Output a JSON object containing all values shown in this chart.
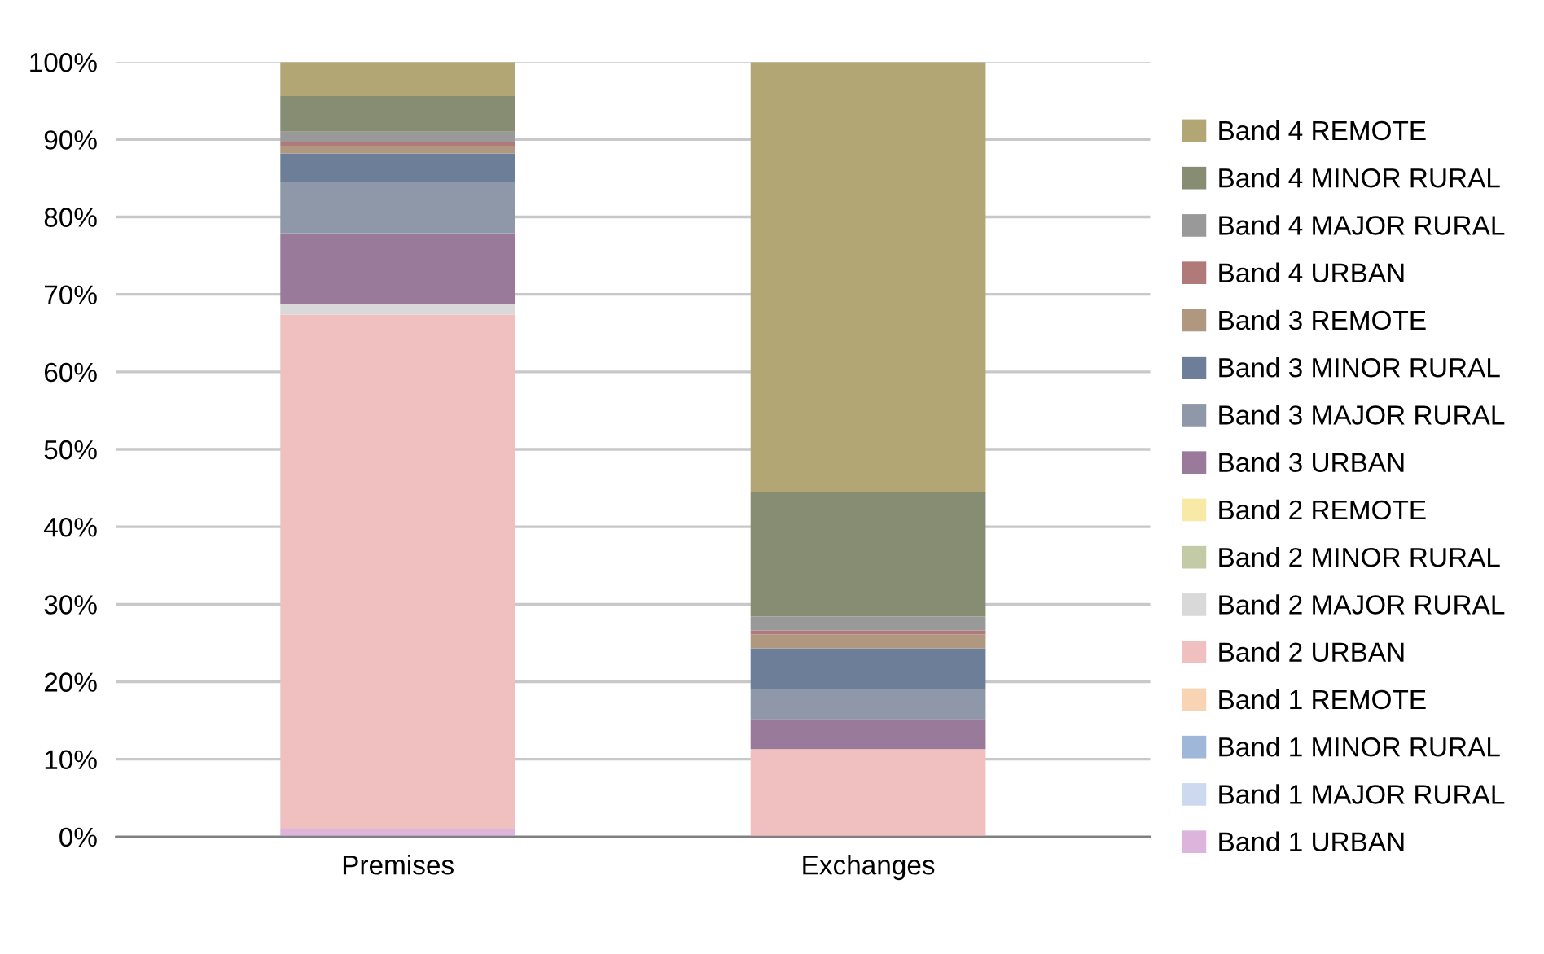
{
  "chart_data": {
    "type": "bar",
    "stacked": true,
    "categories": [
      "Premises",
      "Exchanges"
    ],
    "ylim": [
      0,
      100
    ],
    "yticks": [
      {
        "value": 0,
        "label": "0%"
      },
      {
        "value": 10,
        "label": "10%"
      },
      {
        "value": 20,
        "label": "20%"
      },
      {
        "value": 30,
        "label": "30%"
      },
      {
        "value": 40,
        "label": "40%"
      },
      {
        "value": 50,
        "label": "50%"
      },
      {
        "value": 60,
        "label": "60%"
      },
      {
        "value": 70,
        "label": "70%"
      },
      {
        "value": 80,
        "label": "80%"
      },
      {
        "value": 90,
        "label": "90%"
      },
      {
        "value": 100,
        "label": "100%"
      }
    ],
    "grid": "y",
    "legend": "right",
    "series": [
      {
        "name": "Band 1 URBAN",
        "color": "#dcb4dc",
        "values": [
          1.0,
          0
        ]
      },
      {
        "name": "Band 1 MAJOR RURAL",
        "color": "#ccd9ee",
        "values": [
          0,
          0
        ]
      },
      {
        "name": "Band 1 MINOR RURAL",
        "color": "#9fb7d9",
        "values": [
          0,
          0
        ]
      },
      {
        "name": "Band 1 REMOTE",
        "color": "#f8d4b4",
        "values": [
          0,
          0
        ]
      },
      {
        "name": "Band 2 URBAN",
        "color": "#f0c0c0",
        "values": [
          66.4,
          11.3
        ]
      },
      {
        "name": "Band 2 MAJOR RURAL",
        "color": "#d9d9d9",
        "values": [
          1.3,
          0
        ]
      },
      {
        "name": "Band 2 MINOR RURAL",
        "color": "#c2cba6",
        "values": [
          0,
          0
        ]
      },
      {
        "name": "Band 2 REMOTE",
        "color": "#f8eaa6",
        "values": [
          0,
          0
        ]
      },
      {
        "name": "Band 3 URBAN",
        "color": "#9a7a9a",
        "values": [
          9.2,
          3.9
        ]
      },
      {
        "name": "Band 3 MAJOR RURAL",
        "color": "#8e98a8",
        "values": [
          6.6,
          3.8
        ]
      },
      {
        "name": "Band 3 MINOR RURAL",
        "color": "#6d7f98",
        "values": [
          3.7,
          5.3
        ]
      },
      {
        "name": "Band 3 REMOTE",
        "color": "#b0977f",
        "values": [
          1.0,
          1.8
        ]
      },
      {
        "name": "Band 4 URBAN",
        "color": "#b07a7a",
        "values": [
          0.5,
          0.5
        ]
      },
      {
        "name": "Band 4 MAJOR RURAL",
        "color": "#999999",
        "values": [
          1.3,
          1.8
        ]
      },
      {
        "name": "Band 4 MINOR RURAL",
        "color": "#868d72",
        "values": [
          4.6,
          16.1
        ]
      },
      {
        "name": "Band 4 REMOTE",
        "color": "#b1a674",
        "values": [
          4.4,
          55.5
        ]
      }
    ]
  }
}
